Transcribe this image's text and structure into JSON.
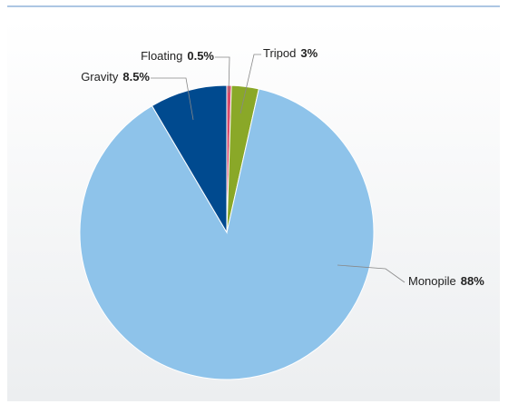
{
  "chart_data": {
    "type": "pie",
    "categories": [
      "Floating",
      "Tripod",
      "Monopile",
      "Gravity"
    ],
    "values": [
      0.5,
      3,
      88,
      8.5
    ],
    "value_labels": [
      "0.5%",
      "3%",
      "88%",
      "8.5%"
    ],
    "colors": [
      "#d94a6a",
      "#8aa828",
      "#8ec3ea",
      "#004a8f"
    ]
  }
}
